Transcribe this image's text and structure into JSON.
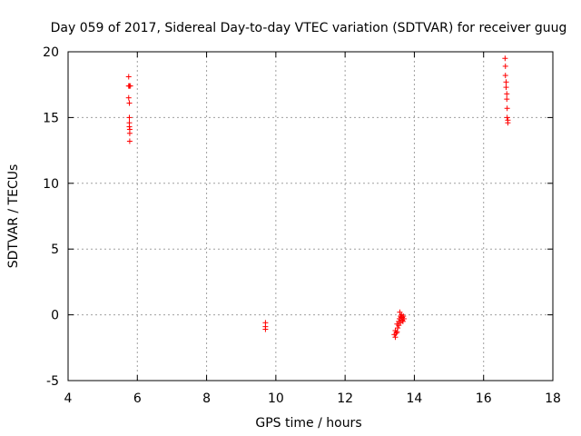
{
  "chart_data": {
    "type": "scatter",
    "title": "Day 059 of 2017, Sidereal Day-to-day VTEC variation (SDTVAR) for receiver guug",
    "xlabel": "GPS time / hours",
    "ylabel": "SDTVAR / TECUs",
    "xlim": [
      4,
      18
    ],
    "ylim": [
      -5,
      20
    ],
    "xticks": [
      "4",
      "6",
      "8",
      "10",
      "12",
      "14",
      "16",
      "18"
    ],
    "yticks": [
      "-5",
      "0",
      "5",
      "10",
      "15",
      "20"
    ],
    "grid": true,
    "marker": "+",
    "color": "#ff0000",
    "series": [
      {
        "x": [
          5.75,
          5.75,
          5.77,
          5.75,
          5.77,
          5.77,
          5.77,
          5.77,
          5.78,
          5.78,
          5.78,
          5.8,
          9.7,
          9.7,
          9.7,
          13.42,
          13.45,
          13.45,
          13.48,
          13.5,
          13.5,
          13.52,
          13.55,
          13.55,
          13.57,
          13.58,
          13.6,
          13.6,
          13.62,
          13.63,
          13.65,
          13.65,
          13.67,
          13.68,
          13.7,
          16.62,
          16.63,
          16.63,
          16.65,
          16.65,
          16.67,
          16.67,
          16.68,
          16.68,
          16.7,
          16.7
        ],
        "y": [
          18.1,
          17.4,
          17.4,
          16.5,
          16.1,
          15.0,
          14.6,
          14.3,
          14.1,
          13.8,
          13.2,
          17.4,
          -0.6,
          -0.9,
          -1.1,
          -1.5,
          -1.7,
          -1.2,
          -1.4,
          -0.7,
          -1.3,
          -1.0,
          -0.5,
          -0.8,
          -0.3,
          0.2,
          -0.1,
          -0.6,
          -0.2,
          0.0,
          -0.4,
          -0.2,
          -0.5,
          -0.1,
          -0.3,
          19.5,
          18.9,
          18.2,
          17.7,
          17.3,
          16.8,
          16.4,
          15.7,
          15.0,
          14.6,
          14.8
        ]
      }
    ]
  }
}
